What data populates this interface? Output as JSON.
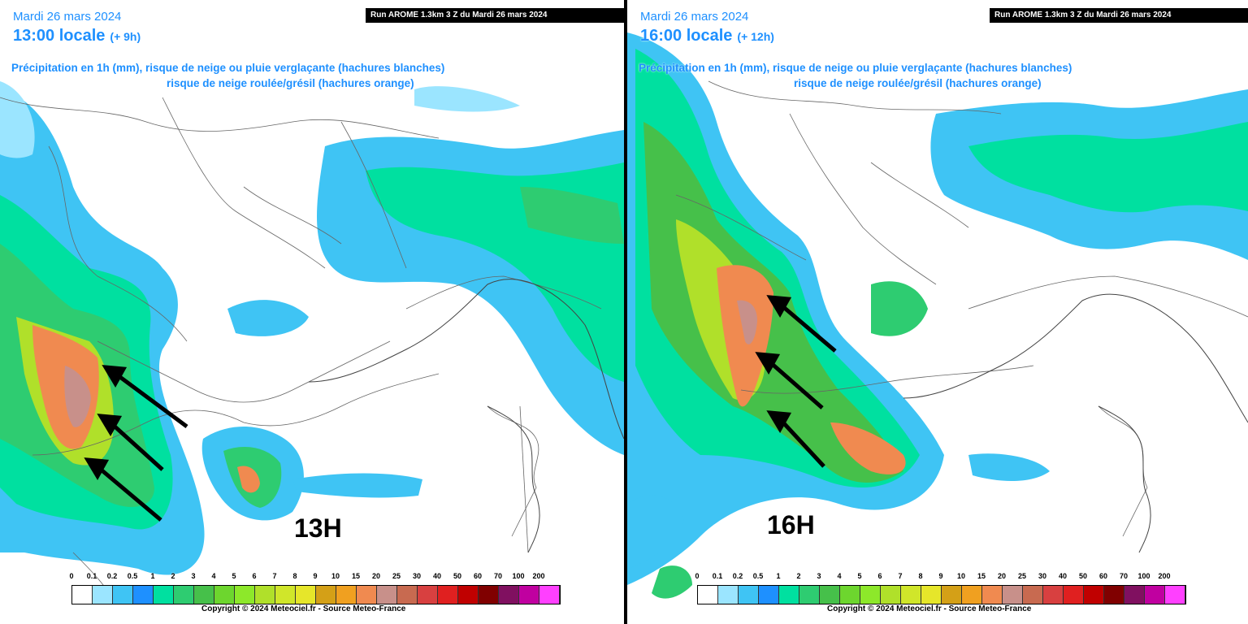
{
  "panels": [
    {
      "date": "Mardi 26 mars 2024",
      "time": "13:00 locale",
      "offset": "(+ 9h)",
      "run": "Run AROME 1.3km 3 Z du Mardi 26 mars 2024",
      "desc_line1": "Précipitation en 1h (mm), risque de neige ou pluie verglaçante (hachures blanches)",
      "desc_line2": "risque de neige roulée/grésil (hachures orange)",
      "big_label": "13H",
      "copyright": "Copyright © 2024 Meteociel.fr - Source Meteo-France"
    },
    {
      "date": "Mardi 26 mars 2024",
      "time": "16:00 locale",
      "offset": "(+ 12h)",
      "run": "Run AROME 1.3km 3 Z du Mardi 26 mars 2024",
      "desc_line1": "Précipitation en 1h (mm), risque de neige ou pluie verglaçante (hachures blanches)",
      "desc_line2": "risque de neige roulée/grésil (hachures orange)",
      "big_label": "16H",
      "copyright": "Copyright © 2024 Meteociel.fr - Source Meteo-France"
    }
  ],
  "legend": {
    "values": [
      "0",
      "0.1",
      "0.2",
      "0.5",
      "1",
      "2",
      "3",
      "4",
      "5",
      "6",
      "7",
      "8",
      "9",
      "10",
      "15",
      "20",
      "25",
      "30",
      "40",
      "50",
      "60",
      "70",
      "100",
      "200"
    ],
    "colors": [
      "#ffffff",
      "#9be5ff",
      "#3fc4f4",
      "#1e90ff",
      "#00e0a0",
      "#2ecc71",
      "#46c04a",
      "#6dd62e",
      "#8de82a",
      "#b0e02a",
      "#d0e62a",
      "#e6e62a",
      "#d4a017",
      "#f0a020",
      "#f08a50",
      "#c8908a",
      "#c86a50",
      "#d84040",
      "#e02020",
      "#c00000",
      "#800000",
      "#801060",
      "#c000a0",
      "#ff40ff"
    ]
  },
  "colors": {
    "title": "#1e90ff",
    "arrow": "#000000"
  }
}
